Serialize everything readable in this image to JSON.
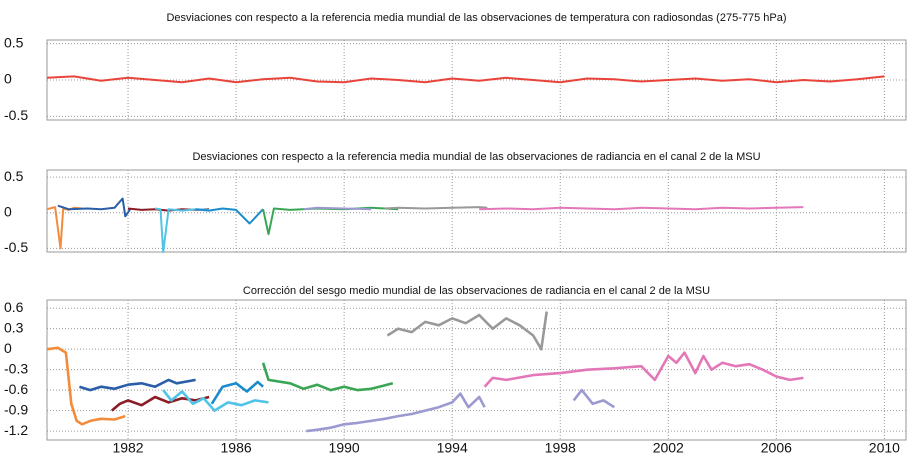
{
  "chart_data": [
    {
      "type": "line",
      "title": "Desviaciones con respecto a la referencia media mundial de las observaciones de temperatura con radiosondas (275-775 hPa)",
      "xlim": [
        1979,
        2010.8
      ],
      "ylim": [
        -0.55,
        0.55
      ],
      "yticks": [
        -0.5,
        0,
        0.5
      ],
      "xticks": [
        1982,
        1986,
        1990,
        1994,
        1998,
        2002,
        2006,
        2010
      ],
      "xtick_labels": false,
      "grid": true,
      "series": [
        {
          "color": "#e8443a",
          "x": [
            1979,
            1980,
            1981,
            1982,
            1983,
            1984,
            1985,
            1986,
            1987,
            1988,
            1989,
            1990,
            1991,
            1992,
            1993,
            1994,
            1995,
            1996,
            1997,
            1998,
            1999,
            2000,
            2001,
            2002,
            2003,
            2004,
            2005,
            2006,
            2007,
            2008,
            2009,
            2010
          ],
          "values": [
            0.03,
            0.05,
            -0.01,
            0.03,
            0.0,
            -0.03,
            0.02,
            -0.03,
            0.01,
            0.03,
            -0.02,
            -0.03,
            0.02,
            0.0,
            -0.03,
            0.02,
            -0.01,
            0.03,
            0.0,
            -0.03,
            0.02,
            0.01,
            -0.02,
            0.0,
            0.02,
            -0.01,
            0.01,
            -0.03,
            0.0,
            -0.02,
            0.01,
            0.05
          ]
        }
      ]
    },
    {
      "type": "line",
      "title": "Desviaciones con respecto a la referencia media mundial de las observaciones de radiancia en el canal 2 de la MSU",
      "xlim": [
        1979,
        2010.8
      ],
      "ylim": [
        -0.55,
        0.6
      ],
      "yticks": [
        -0.5,
        0,
        0.5
      ],
      "xticks": [
        1982,
        1986,
        1990,
        1994,
        1998,
        2002,
        2006,
        2010
      ],
      "xtick_labels": false,
      "grid": true,
      "series": [
        {
          "color": "#f28c3c",
          "x": [
            1979.0,
            1979.3,
            1979.5,
            1979.6,
            1979.8,
            1980.0,
            1980.3
          ],
          "values": [
            0.05,
            0.08,
            -0.5,
            0.06,
            0.04,
            0.07,
            0.06
          ]
        },
        {
          "color": "#2a5ea8",
          "x": [
            1979.4,
            1979.8,
            1980.5,
            1981.0,
            1981.5,
            1981.8,
            1981.9,
            1982.1
          ],
          "values": [
            0.1,
            0.05,
            0.06,
            0.05,
            0.07,
            0.2,
            -0.05,
            0.06
          ]
        },
        {
          "color": "#8b1c24",
          "x": [
            1982.0,
            1982.5,
            1983.0,
            1983.5,
            1984.0,
            1984.5,
            1985.0
          ],
          "values": [
            0.06,
            0.04,
            0.05,
            0.03,
            0.05,
            0.04,
            0.05
          ]
        },
        {
          "color": "#4fc3e8",
          "x": [
            1983.0,
            1983.2,
            1983.3,
            1983.5,
            1984.0,
            1984.5,
            1985.0
          ],
          "values": [
            0.06,
            0.05,
            -0.55,
            0.05,
            0.03,
            0.05,
            0.04
          ]
        },
        {
          "color": "#1a8ccd",
          "x": [
            1984.5,
            1985.0,
            1985.5,
            1986.0,
            1986.5,
            1987.0
          ],
          "values": [
            0.05,
            0.03,
            0.06,
            0.04,
            -0.15,
            0.05
          ]
        },
        {
          "color": "#3aa655",
          "x": [
            1987.0,
            1987.2,
            1987.4,
            1988.0,
            1989.0,
            1990.0,
            1991.0,
            1992.0
          ],
          "values": [
            0.05,
            -0.3,
            0.06,
            0.04,
            0.06,
            0.05,
            0.07,
            0.05
          ]
        },
        {
          "color": "#9a9ad0",
          "x": [
            1988.5,
            1989.0,
            1990.0,
            1991.0
          ],
          "values": [
            0.05,
            0.07,
            0.06,
            0.05
          ]
        },
        {
          "color": "#999999",
          "x": [
            1991.5,
            1992.0,
            1993.0,
            1994.0,
            1995.0,
            1995.3
          ],
          "values": [
            0.06,
            0.07,
            0.06,
            0.07,
            0.08,
            0.07
          ]
        },
        {
          "color": "#e377b8",
          "x": [
            1995,
            1996,
            1997,
            1998,
            1999,
            2000,
            2001,
            2002,
            2003,
            2004,
            2005,
            2006,
            2007
          ],
          "values": [
            0.05,
            0.06,
            0.05,
            0.07,
            0.06,
            0.05,
            0.07,
            0.06,
            0.05,
            0.07,
            0.06,
            0.07,
            0.08
          ]
        }
      ]
    },
    {
      "type": "line",
      "title": "Corrección del sesgo medio mundial de las observaciones de radiancia en el canal 2 de la MSU",
      "xlim": [
        1979,
        2010.8
      ],
      "ylim": [
        -1.33,
        0.72
      ],
      "yticks": [
        -1.2,
        -0.9,
        -0.6,
        -0.3,
        0,
        0.3,
        0.6
      ],
      "xticks": [
        1982,
        1986,
        1990,
        1994,
        1998,
        2002,
        2006,
        2010
      ],
      "xtick_labels": true,
      "grid": true,
      "series": [
        {
          "color": "#f28c3c",
          "x": [
            1979.0,
            1979.4,
            1979.7,
            1979.9,
            1980.1,
            1980.3,
            1980.6,
            1981.0,
            1981.5,
            1981.9
          ],
          "values": [
            0.0,
            0.02,
            -0.05,
            -0.8,
            -1.05,
            -1.1,
            -1.05,
            -1.02,
            -1.03,
            -0.98
          ]
        },
        {
          "color": "#2a5ea8",
          "x": [
            1980.2,
            1980.6,
            1981.0,
            1981.5,
            1982.0,
            1982.5,
            1983.0,
            1983.5,
            1983.8,
            1984.5
          ],
          "values": [
            -0.55,
            -0.6,
            -0.55,
            -0.58,
            -0.52,
            -0.5,
            -0.55,
            -0.45,
            -0.5,
            -0.45
          ]
        },
        {
          "color": "#8b1c24",
          "x": [
            1981.4,
            1981.7,
            1982.0,
            1982.5,
            1983.0,
            1983.5,
            1984.0,
            1984.5,
            1985.0
          ],
          "values": [
            -0.9,
            -0.8,
            -0.75,
            -0.82,
            -0.7,
            -0.78,
            -0.72,
            -0.75,
            -0.7
          ]
        },
        {
          "color": "#4fc3e8",
          "x": [
            1983.3,
            1983.6,
            1984.0,
            1984.4,
            1984.8,
            1985.2,
            1985.7,
            1986.2,
            1986.7,
            1987.2
          ],
          "values": [
            -0.6,
            -0.75,
            -0.62,
            -0.8,
            -0.72,
            -0.9,
            -0.78,
            -0.82,
            -0.75,
            -0.78
          ]
        },
        {
          "color": "#1a8ccd",
          "x": [
            1985.1,
            1985.5,
            1986.0,
            1986.4,
            1986.8,
            1987.0
          ],
          "values": [
            -0.8,
            -0.55,
            -0.5,
            -0.62,
            -0.48,
            -0.55
          ]
        },
        {
          "color": "#3aa655",
          "x": [
            1987.0,
            1987.2,
            1988.0,
            1988.5,
            1989.0,
            1989.5,
            1990.0,
            1990.5,
            1991.0,
            1991.8
          ],
          "values": [
            -0.2,
            -0.45,
            -0.5,
            -0.58,
            -0.52,
            -0.6,
            -0.55,
            -0.6,
            -0.58,
            -0.5
          ]
        },
        {
          "color": "#9a9ad0",
          "x": [
            1988.6,
            1989.0,
            1989.5,
            1990.0,
            1990.5,
            1991.0,
            1991.5,
            1992.0,
            1992.5,
            1993.0,
            1993.5,
            1994.0,
            1994.3,
            1994.6,
            1995.0,
            1995.2
          ],
          "values": [
            -1.2,
            -1.18,
            -1.15,
            -1.1,
            -1.08,
            -1.05,
            -1.02,
            -0.98,
            -0.95,
            -0.9,
            -0.85,
            -0.78,
            -0.65,
            -0.85,
            -0.7,
            -0.85
          ]
        },
        {
          "color": "#999999",
          "x": [
            1991.6,
            1992.0,
            1992.5,
            1993.0,
            1993.5,
            1994.0,
            1994.5,
            1995.0,
            1995.5,
            1996.0,
            1996.5,
            1997.0,
            1997.3,
            1997.5
          ],
          "values": [
            0.2,
            0.3,
            0.25,
            0.4,
            0.35,
            0.45,
            0.38,
            0.5,
            0.3,
            0.45,
            0.35,
            0.2,
            0.0,
            0.55
          ]
        },
        {
          "color": "#9a9ad0",
          "x": [
            1998.5,
            1998.8,
            1999.2,
            1999.6,
            2000.0
          ],
          "values": [
            -0.75,
            -0.6,
            -0.8,
            -0.75,
            -0.85
          ]
        },
        {
          "color": "#e377b8",
          "x": [
            1995.2,
            1995.5,
            1996.0,
            1997.0,
            1998.0,
            1999.0,
            2000.0,
            2001.0,
            2001.5,
            2002.0,
            2002.3,
            2002.6,
            2003.0,
            2003.3,
            2003.6,
            2004.0,
            2004.5,
            2005.0,
            2005.5,
            2006.0,
            2006.5,
            2007.0
          ],
          "values": [
            -0.55,
            -0.42,
            -0.45,
            -0.38,
            -0.35,
            -0.3,
            -0.28,
            -0.25,
            -0.45,
            -0.1,
            -0.2,
            -0.05,
            -0.35,
            -0.1,
            -0.3,
            -0.2,
            -0.25,
            -0.22,
            -0.3,
            -0.4,
            -0.45,
            -0.42
          ]
        }
      ]
    }
  ]
}
